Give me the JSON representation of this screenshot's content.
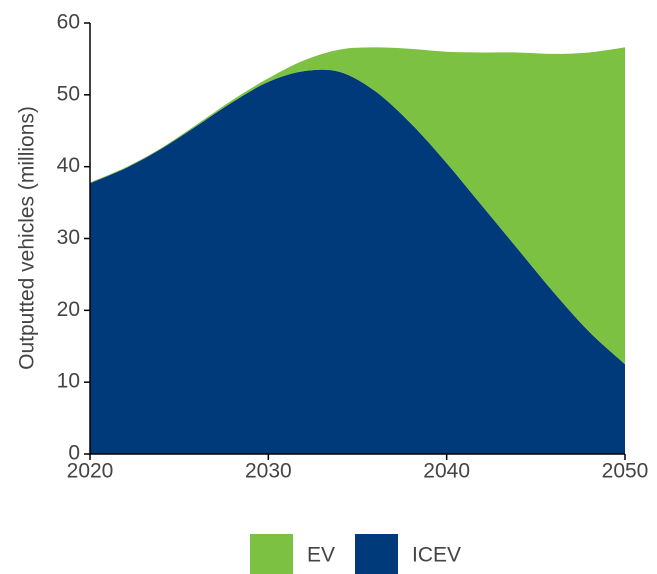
{
  "chart_data": {
    "type": "stacked_area",
    "y_label": "Outputted vehicles (millions)",
    "x": [
      2020,
      2022,
      2024,
      2026,
      2028,
      2030,
      2032,
      2034,
      2036,
      2038,
      2040,
      2042,
      2044,
      2046,
      2048,
      2050
    ],
    "series": [
      {
        "name": "EV",
        "color": "#7dc142",
        "values": [
          0.1,
          0.1,
          0.1,
          0.2,
          0.3,
          0.5,
          1.5,
          3.1,
          6.1,
          10.4,
          15.5,
          21.4,
          27.4,
          33.2,
          38.9,
          44.1
        ]
      },
      {
        "name": "ICEV",
        "color": "#003a7a",
        "values": [
          37.7,
          39.8,
          42.5,
          45.7,
          49,
          51.8,
          53.3,
          53.2,
          50.5,
          46,
          40.5,
          34.5,
          28.5,
          22.5,
          17,
          12.5
        ]
      }
    ],
    "xlim": [
      2020,
      2050
    ],
    "xticks": [
      2020,
      2030,
      2040,
      2050
    ],
    "ylim": [
      0,
      60
    ],
    "yticks": [
      0,
      10,
      20,
      30,
      40,
      50,
      60
    ],
    "legend": "bottom"
  }
}
